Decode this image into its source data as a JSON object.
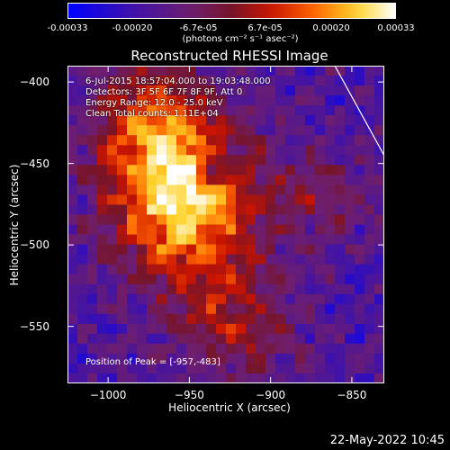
{
  "colorbar": {
    "tick_labels": [
      "-0.00033",
      "-0.00020",
      "-6.7e-05",
      "6.7e-05",
      "0.00020",
      "0.00033"
    ],
    "tick_values": [
      -0.00033,
      -0.0002,
      -6.7e-05,
      6.7e-05,
      0.0002,
      0.00033
    ],
    "unit_label": "(photons cm⁻² s⁻¹ asec⁻²)",
    "range": [
      -0.00033,
      0.00033
    ]
  },
  "chart_data": {
    "type": "heatmap",
    "title": "Reconstructed RHESSI Image",
    "xlabel": "Heliocentric X (arcsec)",
    "ylabel": "Heliocentric Y (arcsec)",
    "xlim": [
      -1025,
      -830
    ],
    "ylim": [
      -585,
      -390
    ],
    "x_ticks": [
      -1000,
      -950,
      -900,
      -850
    ],
    "y_ticks": [
      -400,
      -450,
      -500,
      -550
    ],
    "colormap": "rhessi-image (blue-purple-red-orange-yellow-white)",
    "annotations": [
      "6-Jul-2015 18:57:04.000 to 19:03:48.000",
      "Detectors: 3F 5F 6F 7F 8F 9F, Att 0",
      "Energy Range: 12.0 - 25.0 keV",
      "Clean     Total counts: 1.11E+04"
    ],
    "peak_label": "Position of Peak = [-957,-483]",
    "peak": [
      -957,
      -483
    ]
  },
  "footer": {
    "date": "22-May-2022 10:45"
  },
  "colors": {
    "background": "#000000",
    "foreground": "#ffffff"
  }
}
